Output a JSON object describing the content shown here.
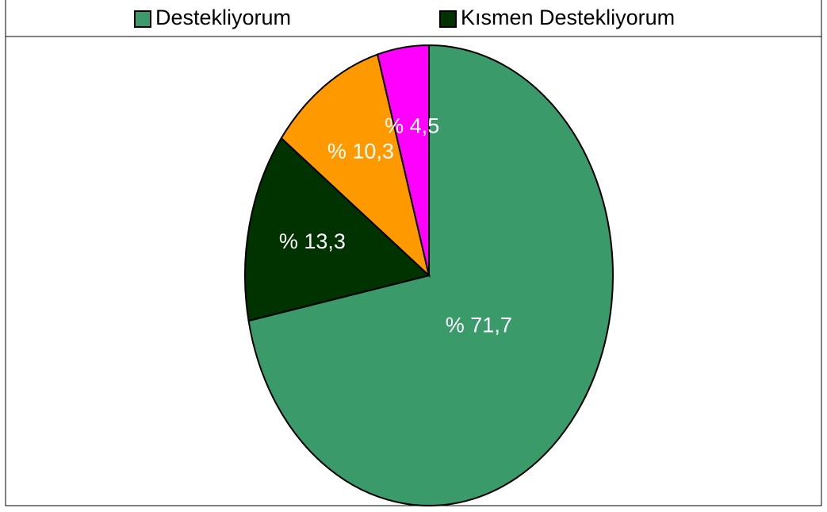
{
  "chart_data": {
    "type": "pie",
    "categories": [
      "Destekliyorum",
      "Kısmen Destekliyorum",
      null,
      null
    ],
    "values": [
      71.7,
      13.3,
      10.3,
      4.5
    ],
    "value_labels": [
      "% 71,7",
      "% 13,3",
      "% 10,3",
      "% 4,5"
    ],
    "colors": [
      "#3a9a6a",
      "#003300",
      "#ff9900",
      "#ff00ff"
    ],
    "legend": "top"
  }
}
